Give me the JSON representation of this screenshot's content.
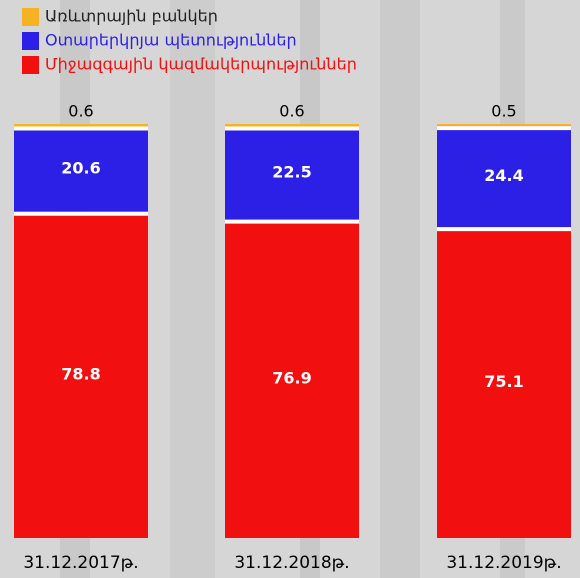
{
  "chart_data": {
    "type": "stacked_bar",
    "categories": [
      "31.12.2017թ.",
      "31.12.2018թ.",
      "31.12.2019թ."
    ],
    "series": [
      {
        "name": "Առևտրային բանկեր",
        "color": "#f5b324",
        "values": [
          0.6,
          0.6,
          0.5
        ]
      },
      {
        "name": "Օտարերկրյա պետություններ",
        "color": "#2c1fe6",
        "values": [
          20.6,
          22.5,
          24.4
        ]
      },
      {
        "name": "Միջազգային կազմակերպություններ",
        "color": "#f20f0f",
        "values": [
          78.8,
          76.9,
          75.1
        ]
      }
    ],
    "ylim": [
      0,
      100
    ]
  }
}
